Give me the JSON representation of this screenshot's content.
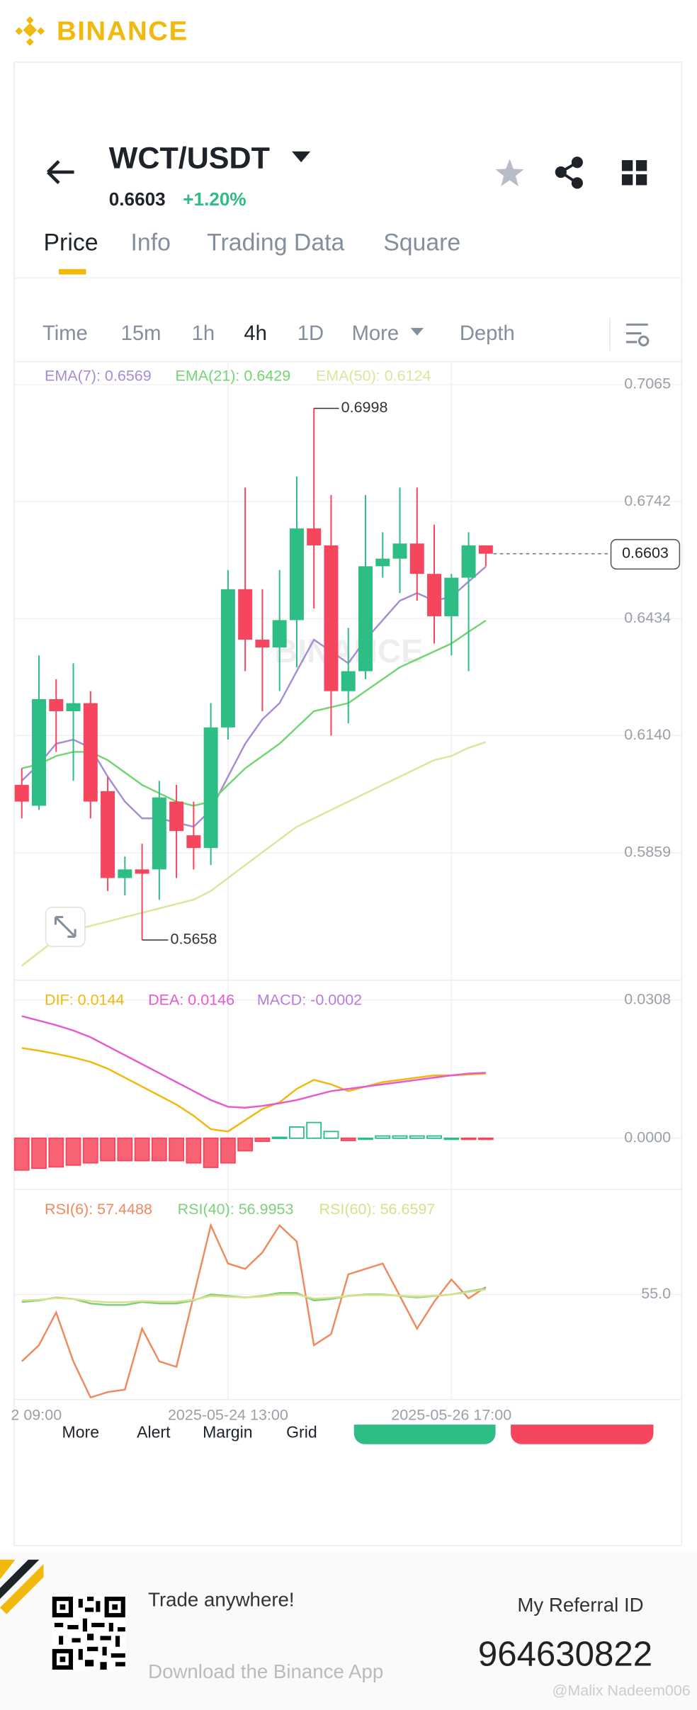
{
  "header": {
    "brand": "BINANCE"
  },
  "pair": {
    "symbol": "WCT/USDT",
    "price": "0.6603",
    "change": "+1.20%"
  },
  "tabs": [
    "Price",
    "Info",
    "Trading Data",
    "Square"
  ],
  "intervals": [
    "Time",
    "15m",
    "1h",
    "4h",
    "1D",
    "More",
    "Depth"
  ],
  "chart_data": [
    {
      "type": "candlestick",
      "watermark": "BINANCE",
      "log_scale": true,
      "grid": true,
      "up_color": "#2ebd85",
      "down_color": "#f6465d",
      "ylim": [
        0.5575,
        0.7127
      ],
      "yticks": [
        0.7065,
        0.6742,
        0.6434,
        {
          "value": 0.614,
          "label": "0.6140"
        },
        0.5859
      ],
      "categories": [
        null,
        null,
        null,
        null,
        null,
        null,
        null,
        null,
        null,
        null,
        null,
        null,
        "2025-05-24 13:00",
        null,
        null,
        null,
        null,
        null,
        null,
        null,
        null,
        null,
        null,
        null,
        null,
        "2025-05-26 17:00",
        null,
        null
      ],
      "x_edge_label": "2 09:00",
      "open": [
        0.602,
        0.597,
        0.623,
        0.62,
        0.622,
        0.6005,
        0.58,
        0.582,
        0.582,
        0.598,
        0.59,
        0.587,
        0.616,
        0.651,
        0.638,
        0.636,
        0.643,
        0.667,
        0.6625,
        0.625,
        0.63,
        0.657,
        0.659,
        0.663,
        0.655,
        0.644,
        0.654,
        0.6625
      ],
      "high": [
        0.606,
        0.634,
        0.628,
        0.632,
        0.625,
        0.604,
        0.585,
        0.588,
        0.603,
        0.602,
        0.598,
        0.622,
        0.656,
        0.678,
        0.651,
        0.656,
        0.681,
        0.6998,
        0.676,
        0.641,
        0.676,
        0.666,
        0.678,
        0.678,
        0.668,
        0.655,
        0.666,
        0.6625
      ],
      "low": [
        0.594,
        0.596,
        0.61,
        0.603,
        0.594,
        0.577,
        0.576,
        0.5658,
        0.575,
        0.58,
        0.582,
        0.583,
        0.613,
        0.63,
        0.62,
        0.625,
        0.631,
        0.646,
        0.614,
        0.617,
        0.628,
        0.654,
        0.65,
        0.648,
        0.637,
        0.634,
        0.63,
        0.657
      ],
      "close": [
        0.598,
        0.623,
        0.62,
        0.622,
        0.598,
        0.58,
        0.582,
        0.581,
        0.599,
        0.591,
        0.587,
        0.616,
        0.651,
        0.638,
        0.636,
        0.643,
        0.667,
        0.6625,
        0.625,
        0.63,
        0.657,
        0.659,
        0.663,
        0.655,
        0.644,
        0.654,
        0.6625,
        0.6603
      ],
      "high_label": 0.6998,
      "low_label": 0.5658,
      "last_price": 0.6603,
      "series": [
        {
          "legend": "EMA(7): 0.6569",
          "color": "#a78bd6",
          "values": [
            0.603,
            0.607,
            0.612,
            0.613,
            0.611,
            0.604,
            0.598,
            0.594,
            0.594,
            0.593,
            0.592,
            0.596,
            0.604,
            0.612,
            0.618,
            0.622,
            0.63,
            0.638,
            0.635,
            0.632,
            0.638,
            0.643,
            0.648,
            0.65,
            0.648,
            0.649,
            0.653,
            0.6569
          ]
        },
        {
          "legend": "EMA(21): 0.6429",
          "color": "#72d572",
          "values": [
            0.606,
            0.607,
            0.609,
            0.61,
            0.61,
            0.608,
            0.605,
            0.602,
            0.6,
            0.598,
            0.597,
            0.598,
            0.602,
            0.606,
            0.609,
            0.612,
            0.616,
            0.62,
            0.621,
            0.622,
            0.625,
            0.628,
            0.631,
            0.633,
            0.635,
            0.637,
            0.64,
            0.6429
          ]
        },
        {
          "legend": "EMA(50): 0.6124",
          "color": "#d9e79b",
          "values": [
            0.56,
            0.563,
            0.566,
            0.568,
            0.569,
            0.57,
            0.571,
            0.572,
            0.573,
            0.574,
            0.575,
            0.577,
            0.58,
            0.583,
            0.586,
            0.589,
            0.592,
            0.594,
            0.596,
            0.598,
            0.6,
            0.602,
            0.604,
            0.606,
            0.608,
            0.609,
            0.611,
            0.6124
          ]
        }
      ]
    },
    {
      "type": "macd",
      "grid": true,
      "ylim": [
        -0.0114,
        0.0352
      ],
      "yticks": [
        0.0308,
        {
          "value": 0,
          "label": "0.0000"
        }
      ],
      "series": [
        {
          "legend": "DIF: 0.0144",
          "color": "#f0b90b",
          "values": [
            0.0201,
            0.0195,
            0.0188,
            0.018,
            0.017,
            0.0155,
            0.0135,
            0.0115,
            0.0095,
            0.0075,
            0.005,
            0.002,
            0.0015,
            0.004,
            0.0065,
            0.008,
            0.011,
            0.013,
            0.012,
            0.0105,
            0.0115,
            0.0125,
            0.013,
            0.0135,
            0.014,
            0.014,
            0.0142,
            0.0144
          ]
        },
        {
          "legend": "DEA: 0.0146",
          "color": "#e55bcf",
          "values": [
            0.0272,
            0.0262,
            0.0252,
            0.024,
            0.0225,
            0.0205,
            0.0185,
            0.0165,
            0.0145,
            0.0125,
            0.0105,
            0.0085,
            0.007,
            0.0068,
            0.0072,
            0.0078,
            0.0085,
            0.0095,
            0.0105,
            0.011,
            0.0115,
            0.012,
            0.0125,
            0.013,
            0.0135,
            0.014,
            0.0144,
            0.0146
          ]
        }
      ],
      "histogram": {
        "legend": "MACD: -0.0002",
        "color": "#b57edc",
        "up_color": "#2ebd85",
        "down_color": "#f6465d",
        "values": [
          -0.0071,
          -0.0067,
          -0.0064,
          -0.006,
          -0.0055,
          -0.005,
          -0.005,
          -0.005,
          -0.005,
          -0.005,
          -0.0055,
          -0.0065,
          -0.0055,
          -0.0028,
          -0.0007,
          0.0002,
          0.0025,
          0.0035,
          0.0015,
          -0.0005,
          0,
          0.0005,
          0.0005,
          0.0005,
          0.0005,
          0,
          -0.0002,
          -0.0002
        ]
      }
    },
    {
      "type": "line",
      "grid": true,
      "ylim": [
        20,
        90
      ],
      "yticks": [
        {
          "value": 55,
          "label": "55.0"
        }
      ],
      "series": [
        {
          "legend": "RSI(6): 57.4488",
          "color": "#f08a5d",
          "values": [
            32.7,
            38.1,
            49.0,
            32.7,
            20.7,
            22.5,
            23.3,
            43.6,
            32.7,
            30.9,
            54.5,
            78.0,
            65.3,
            63.5,
            69.0,
            78.0,
            72.6,
            38.1,
            41.8,
            61.7,
            63.5,
            65.3,
            54.5,
            43.6,
            52.6,
            60.0,
            53.7,
            57.4488
          ]
        },
        {
          "legend": "RSI(40): 56.9953",
          "color": "#7ed07e",
          "values": [
            52.5,
            53.0,
            54.0,
            53.5,
            52.0,
            51.5,
            51.5,
            52.5,
            52.0,
            52.0,
            53.0,
            55.0,
            54.5,
            54.0,
            54.5,
            55.5,
            55.5,
            53.0,
            53.5,
            54.5,
            55.0,
            55.0,
            54.5,
            54.0,
            54.5,
            55.0,
            56.0,
            56.9953
          ]
        },
        {
          "legend": "RSI(60): 56.6597",
          "color": "#d8e08a",
          "values": [
            53.0,
            53.2,
            53.8,
            53.5,
            52.8,
            52.4,
            52.4,
            52.8,
            52.6,
            52.6,
            53.2,
            54.5,
            54.2,
            54.0,
            54.3,
            55.0,
            55.0,
            53.6,
            53.9,
            54.5,
            54.8,
            54.8,
            54.6,
            54.3,
            54.6,
            55.0,
            55.8,
            56.6597
          ]
        }
      ]
    }
  ],
  "toolbar": [
    "More",
    "Alert",
    "Margin",
    "Grid"
  ],
  "footer": {
    "tagline": "Trade anywhere!",
    "download": "Download the Binance App",
    "referral_label": "My Referral ID",
    "referral_id": "964630822",
    "watermark": "@Malix Nadeem006"
  }
}
